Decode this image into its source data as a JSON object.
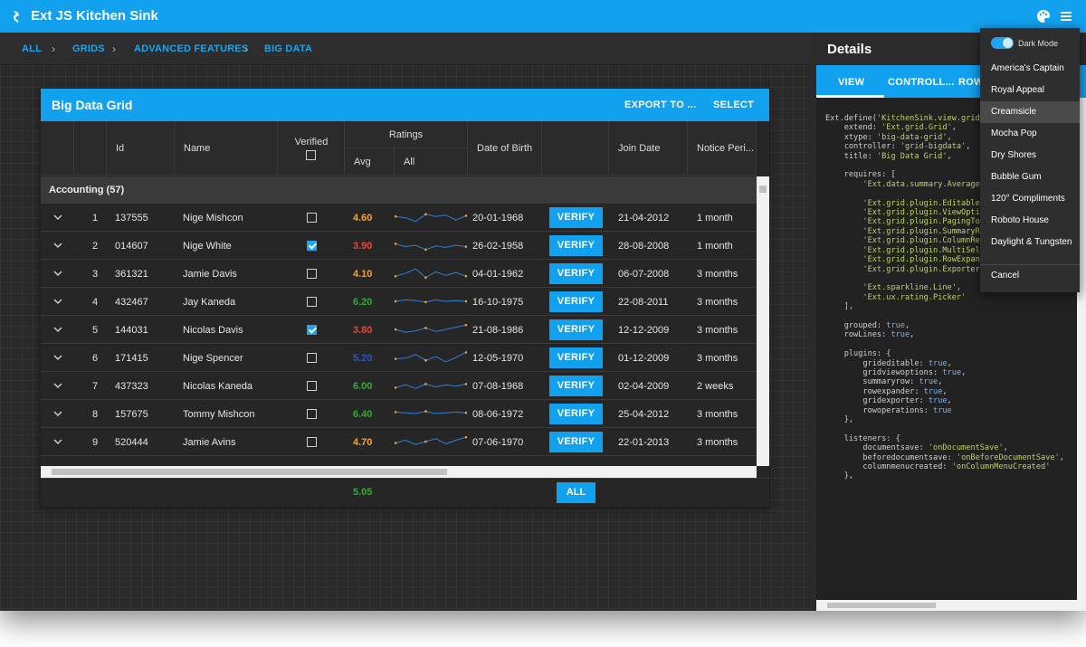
{
  "app": {
    "title": "Ext JS Kitchen Sink"
  },
  "breadcrumb": [
    "ALL",
    "GRIDS",
    "ADVANCED FEATURES",
    "BIG DATA"
  ],
  "grid": {
    "title": "Big Data Grid",
    "export_label": "EXPORT TO ...",
    "select_label": "SELECT",
    "columns": {
      "id": "Id",
      "name": "Name",
      "verified": "Verified",
      "ratings": "Ratings",
      "avg": "Avg",
      "all": "All",
      "dob": "Date of Birth",
      "join": "Join Date",
      "notice": "Notice Peri..."
    },
    "group_label": "Accounting (57)",
    "verify_label": "VERIFY",
    "rows": [
      {
        "num": "1",
        "id": "137555",
        "name": "Nige Mishcon",
        "verified": false,
        "avg": "4.60",
        "avg_color": "#f2a533",
        "dob": "20-01-1968",
        "join": "21-04-2012",
        "notice": "1 month",
        "spark": [
          0.55,
          0.45,
          0.2,
          0.7,
          0.55,
          0.65,
          0.3,
          0.6
        ]
      },
      {
        "num": "2",
        "id": "014607",
        "name": "Nige White",
        "verified": true,
        "avg": "3.90",
        "avg_color": "#e0483e",
        "dob": "26-02-1958",
        "join": "28-08-2008",
        "notice": "1 month",
        "spark": [
          0.6,
          0.4,
          0.5,
          0.2,
          0.45,
          0.35,
          0.5,
          0.4
        ]
      },
      {
        "num": "3",
        "id": "361321",
        "name": "Jamie Davis",
        "verified": false,
        "avg": "4.10",
        "avg_color": "#f2a533",
        "dob": "04-01-1962",
        "join": "06-07-2008",
        "notice": "3 months",
        "spark": [
          0.3,
          0.5,
          0.8,
          0.2,
          0.6,
          0.35,
          0.55,
          0.3
        ]
      },
      {
        "num": "4",
        "id": "432467",
        "name": "Jay Kaneda",
        "verified": false,
        "avg": "6.20",
        "avg_color": "#3aa53a",
        "dob": "16-10-1975",
        "join": "22-08-2011",
        "notice": "3 months",
        "spark": [
          0.5,
          0.6,
          0.55,
          0.45,
          0.6,
          0.5,
          0.55,
          0.5
        ]
      },
      {
        "num": "5",
        "id": "144031",
        "name": "Nicolas Davis",
        "verified": true,
        "avg": "3.80",
        "avg_color": "#e0483e",
        "dob": "21-08-1986",
        "join": "12-12-2009",
        "notice": "3 months",
        "spark": [
          0.5,
          0.3,
          0.4,
          0.6,
          0.35,
          0.5,
          0.65,
          0.8
        ]
      },
      {
        "num": "6",
        "id": "171415",
        "name": "Nige Spencer",
        "verified": false,
        "avg": "5.20",
        "avg_color": "#2f56b8",
        "dob": "12-05-1970",
        "join": "01-12-2009",
        "notice": "3 months",
        "spark": [
          0.4,
          0.45,
          0.7,
          0.3,
          0.55,
          0.2,
          0.5,
          0.85
        ]
      },
      {
        "num": "7",
        "id": "437323",
        "name": "Nicolas Kaneda",
        "verified": false,
        "avg": "6.00",
        "avg_color": "#3aa53a",
        "dob": "07-08-1968",
        "join": "02-04-2009",
        "notice": "2 weeks",
        "spark": [
          0.35,
          0.55,
          0.3,
          0.6,
          0.4,
          0.55,
          0.45,
          0.6
        ]
      },
      {
        "num": "8",
        "id": "157675",
        "name": "Tommy Mishcon",
        "verified": false,
        "avg": "6.40",
        "avg_color": "#3aa53a",
        "dob": "08-06-1972",
        "join": "25-04-2012",
        "notice": "3 months",
        "spark": [
          0.6,
          0.55,
          0.5,
          0.65,
          0.5,
          0.55,
          0.6,
          0.55
        ]
      },
      {
        "num": "9",
        "id": "520444",
        "name": "Jamie Avins",
        "verified": false,
        "avg": "4.70",
        "avg_color": "#f2a533",
        "dob": "07-06-1970",
        "join": "22-01-2013",
        "notice": "3 months",
        "spark": [
          0.4,
          0.6,
          0.3,
          0.5,
          0.7,
          0.35,
          0.6,
          0.8
        ]
      }
    ],
    "summary_avg": "5.05",
    "all_button": "ALL"
  },
  "details": {
    "title": "Details",
    "tabs": [
      "VIEW",
      "CONTROLL...",
      "ROW"
    ]
  },
  "theme_menu": {
    "dark_mode_label": "Dark Mode",
    "items": [
      "America's Captain",
      "Royal Appeal",
      "Creamsicle",
      "Mocha Pop",
      "Dry Shores",
      "Bubble Gum",
      "120° Compliments",
      "Roboto House",
      "Daylight & Tungsten"
    ],
    "selected": "Creamsicle",
    "cancel_label": "Cancel"
  },
  "colors": {
    "accent": "#12a1ef",
    "surface": "#262626",
    "green": "#3aa53a",
    "orange": "#f2a533",
    "red": "#e0483e"
  }
}
